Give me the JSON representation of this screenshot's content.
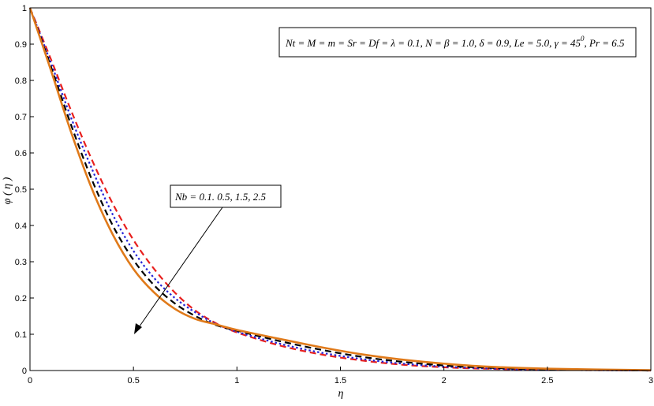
{
  "chart_data": {
    "type": "line",
    "xlabel": "η",
    "ylabel": "φ ( η )",
    "xlim": [
      0,
      3
    ],
    "ylim": [
      0,
      1
    ],
    "xticks": [
      "0",
      "0.5",
      "1",
      "1.5",
      "2",
      "2.5",
      "3"
    ],
    "yticks": [
      "0",
      "0.1",
      "0.2",
      "0.3",
      "0.4",
      "0.5",
      "0.6",
      "0.7",
      "0.8",
      "0.9",
      "1"
    ],
    "grid": false,
    "x": [
      0,
      0.1,
      0.2,
      0.3,
      0.4,
      0.5,
      0.6,
      0.7,
      0.8,
      0.9,
      1.0,
      1.2,
      1.4,
      1.6,
      1.8,
      2.0,
      2.2,
      2.5,
      3.0
    ],
    "series": [
      {
        "values": [
          1.0,
          0.86,
          0.715,
          0.58,
          0.46,
          0.36,
          0.28,
          0.215,
          0.165,
          0.13,
          0.105,
          0.07,
          0.045,
          0.028,
          0.016,
          0.009,
          0.005,
          0.002,
          0.0
        ],
        "color": "#e8201e",
        "dash": "dashed"
      },
      {
        "values": [
          1.0,
          0.85,
          0.695,
          0.555,
          0.43,
          0.33,
          0.255,
          0.2,
          0.16,
          0.128,
          0.107,
          0.075,
          0.05,
          0.032,
          0.019,
          0.011,
          0.006,
          0.002,
          0.0
        ],
        "color": "#2323d6",
        "dash": "dotted"
      },
      {
        "values": [
          1.0,
          0.84,
          0.675,
          0.525,
          0.4,
          0.305,
          0.235,
          0.185,
          0.15,
          0.125,
          0.11,
          0.082,
          0.058,
          0.038,
          0.024,
          0.014,
          0.008,
          0.003,
          0.0
        ],
        "color": "#000000",
        "dash": "dashed"
      },
      {
        "values": [
          1.0,
          0.83,
          0.655,
          0.5,
          0.375,
          0.28,
          0.215,
          0.17,
          0.142,
          0.127,
          0.112,
          0.088,
          0.065,
          0.045,
          0.03,
          0.019,
          0.011,
          0.005,
          0.001
        ],
        "color": "#e07a1a",
        "dash": "solid"
      }
    ],
    "annotations": {
      "params": "Nt = M = m = Sr = Df = λ = 0.1, N = β = 1.0, δ = 0.9, Le = 5.0, γ = 45",
      "params_sup": "0",
      "params_tail": ", Pr = 6.5",
      "nb": "Nb = 0.1. 0.5, 1.5, 2.5"
    }
  }
}
